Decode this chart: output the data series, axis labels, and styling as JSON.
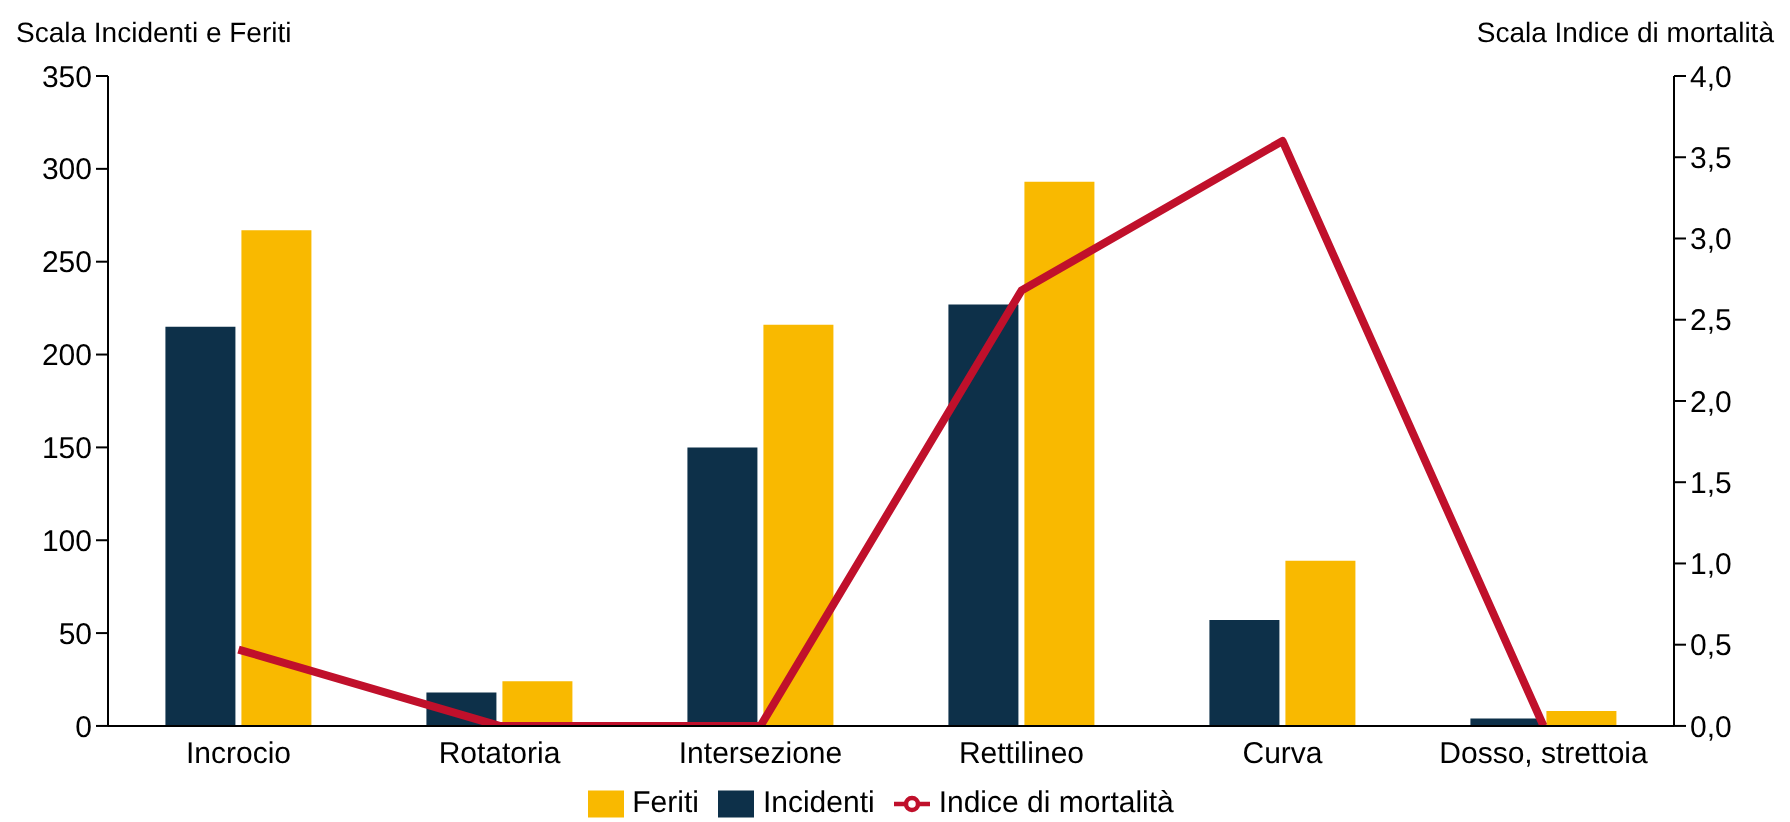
{
  "chart_data": {
    "type": "bar",
    "ylabel": "Scala Incidenti e Feriti",
    "y2label": "Scala Indice di mortalità",
    "categories": [
      "Incrocio",
      "Rotatoria",
      "Intersezione",
      "Rettilineo",
      "Curva",
      "Dosso, strettoia"
    ],
    "series": [
      {
        "name": "Incidenti",
        "color": "#0d3049",
        "values": [
          215,
          18,
          150,
          227,
          57,
          4
        ]
      },
      {
        "name": "Feriti",
        "color": "#f9b900",
        "values": [
          267,
          24,
          216,
          293,
          89,
          8
        ]
      },
      {
        "name": "Indice di mortalità",
        "type": "line",
        "axis": "y2",
        "color": "#c0102b",
        "values": [
          0.47,
          0,
          0,
          2.68,
          3.6,
          0
        ]
      }
    ],
    "ylim": [
      0,
      350
    ],
    "yticks": [
      0,
      50,
      100,
      150,
      200,
      250,
      300,
      350
    ],
    "y2lim": [
      0,
      4
    ],
    "y2ticks": [
      {
        "value": 0,
        "label": "0,0"
      },
      {
        "value": 0.5,
        "label": "0,5"
      },
      {
        "value": 1,
        "label": "1,0"
      },
      {
        "value": 1.5,
        "label": "1,5"
      },
      {
        "value": 2,
        "label": "2,0"
      },
      {
        "value": 2.5,
        "label": "2,5"
      },
      {
        "value": 3,
        "label": "3,0"
      },
      {
        "value": 3.5,
        "label": "3,5"
      },
      {
        "value": 4,
        "label": "4,0"
      }
    ],
    "grid": false,
    "legend": "bottom",
    "marker": "none"
  }
}
